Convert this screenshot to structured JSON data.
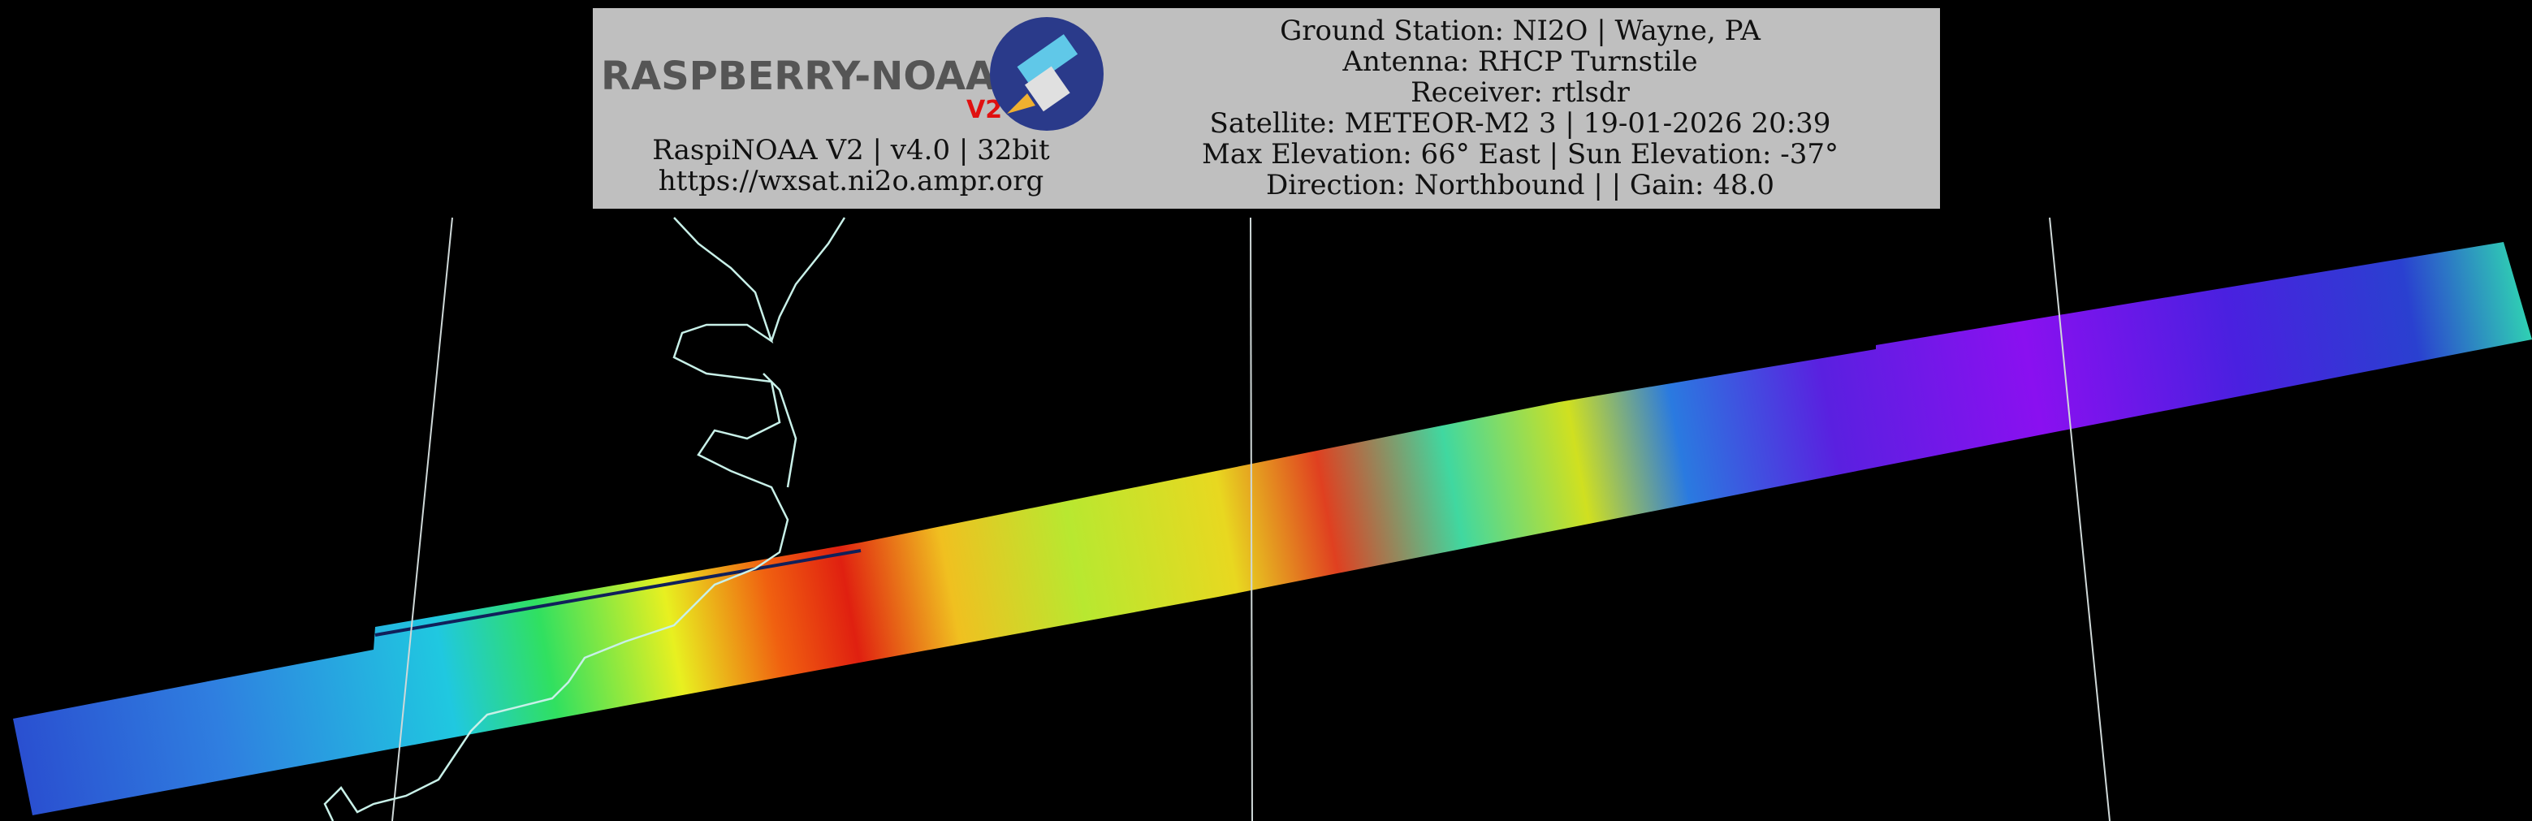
{
  "header": {
    "logo_text": "RASPBERRY-NOAA",
    "logo_version": "V2",
    "left_lines": [
      "RaspiNOAA V2 | v4.0 | 32bit",
      "https://wxsat.ni2o.ampr.org"
    ],
    "right_lines": [
      "Ground Station: NI2O | Wayne, PA",
      "Antenna: RHCP Turnstile",
      "Receiver: rtlsdr",
      "Satellite: METEOR-M2 3 | 19-01-2026 20:39",
      "Max Elevation: 66° East | Sun Elevation: -37°",
      "Direction: Northbound | | Gain: 48.0"
    ]
  }
}
